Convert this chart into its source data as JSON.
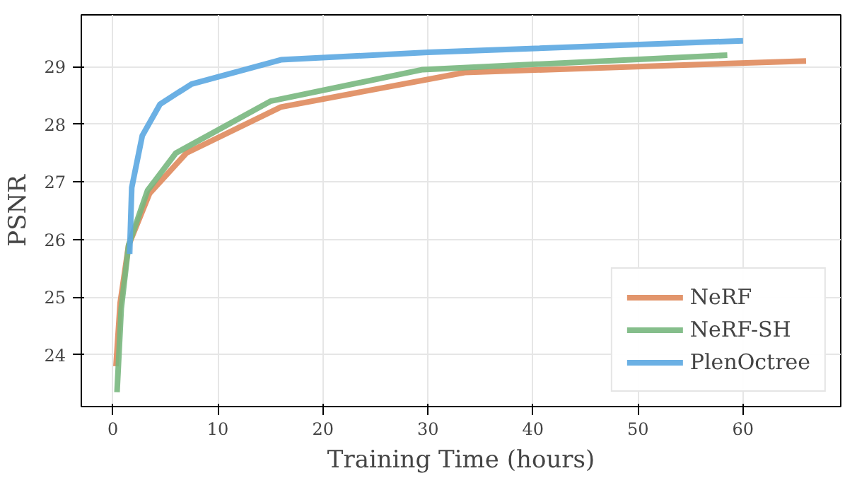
{
  "chart_data": {
    "type": "line",
    "xlabel": "Training Time (hours)",
    "ylabel": "PSNR",
    "xlim": [
      -3,
      69.3
    ],
    "ylim": [
      23.1,
      29.9
    ],
    "xticks": [
      0,
      10,
      20,
      30,
      40,
      50,
      60
    ],
    "yticks": [
      24,
      25,
      26,
      27,
      28,
      29
    ],
    "grid": true,
    "legend": "bottom right",
    "marker": "none",
    "line_style": "solid",
    "series": [
      {
        "name": "NeRF",
        "color": "#df8a5c",
        "x": [
          0.3,
          0.7,
          1.5,
          3.5,
          7,
          16,
          33.5,
          66
        ],
        "values": [
          23.8,
          24.9,
          25.9,
          26.8,
          27.5,
          28.3,
          28.9,
          29.1
        ]
      },
      {
        "name": "NeRF-SH",
        "color": "#78b77e",
        "x": [
          0.4,
          0.8,
          1.5,
          3.3,
          6,
          15,
          29.5,
          58.5
        ],
        "values": [
          23.35,
          24.8,
          25.9,
          26.85,
          27.5,
          28.4,
          28.95,
          29.2
        ]
      },
      {
        "name": "PlenOctree",
        "color": "#5ba7e1",
        "x": [
          1.6,
          1.8,
          2.8,
          4.5,
          7.5,
          16,
          30,
          60
        ],
        "values": [
          25.75,
          26.9,
          27.8,
          28.35,
          28.7,
          29.12,
          29.25,
          29.45
        ]
      }
    ]
  }
}
